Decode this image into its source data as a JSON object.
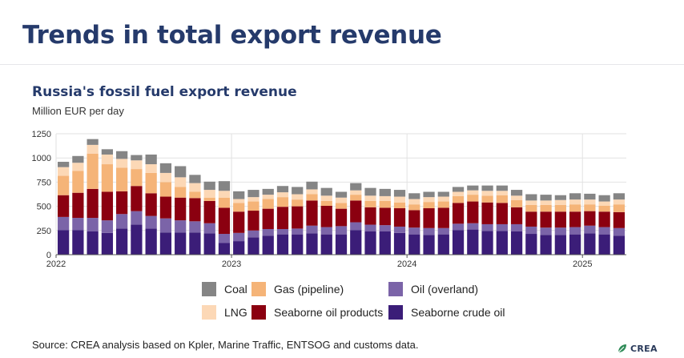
{
  "slide_title": "Trends in total export revenue",
  "source_note": "Source: CREA analysis based on Kpler, Marine Traffic, ENTSOG and customs data.",
  "brand": {
    "name": "CREA",
    "color": "#2e8b57"
  },
  "colors": {
    "gridline": "#e2e2e2",
    "axis": "#555555"
  },
  "chart_data": {
    "type": "bar",
    "stacked": true,
    "title": "Russia's fossil fuel export revenue",
    "ylabel": "Million EUR per day",
    "xlabel": "",
    "ylim": [
      0,
      1250
    ],
    "yticks": [
      "0",
      "250",
      "500",
      "750",
      "1000",
      "1250"
    ],
    "ytick_values": [
      0,
      250,
      500,
      750,
      1000,
      1250
    ],
    "grid": true,
    "legend_position": "bottom",
    "xticks": [
      {
        "label": "2022",
        "index": 0
      },
      {
        "label": "2023",
        "index": 12
      },
      {
        "label": "2024",
        "index": 24
      },
      {
        "label": "2025",
        "index": 36
      }
    ],
    "categories": [
      "2022-01",
      "2022-02",
      "2022-03",
      "2022-04",
      "2022-05",
      "2022-06",
      "2022-07",
      "2022-08",
      "2022-09",
      "2022-10",
      "2022-11",
      "2022-12",
      "2023-01",
      "2023-02",
      "2023-03",
      "2023-04",
      "2023-05",
      "2023-06",
      "2023-07",
      "2023-08",
      "2023-09",
      "2023-10",
      "2023-11",
      "2023-12",
      "2024-01",
      "2024-02",
      "2024-03",
      "2024-04",
      "2024-05",
      "2024-06",
      "2024-07",
      "2024-08",
      "2024-09",
      "2024-10",
      "2024-11",
      "2024-12",
      "2025-01",
      "2025-02",
      "2025-03"
    ],
    "series": [
      {
        "name": "Seaborne crude oil",
        "color": "#3b1d78",
        "values": [
          255,
          255,
          240,
          225,
          270,
          310,
          270,
          230,
          230,
          230,
          220,
          120,
          140,
          180,
          195,
          210,
          210,
          220,
          210,
          210,
          255,
          240,
          240,
          225,
          210,
          205,
          210,
          255,
          260,
          245,
          245,
          240,
          215,
          205,
          205,
          210,
          220,
          210,
          195
        ]
      },
      {
        "name": "Oil (overland)",
        "color": "#7b64a8",
        "values": [
          135,
          125,
          140,
          130,
          150,
          140,
          130,
          145,
          125,
          115,
          105,
          95,
          85,
          70,
          70,
          55,
          60,
          80,
          75,
          85,
          80,
          70,
          65,
          65,
          70,
          70,
          65,
          65,
          65,
          70,
          70,
          75,
          75,
          75,
          75,
          75,
          80,
          75,
          80
        ]
      },
      {
        "name": "Seaborne oil products",
        "color": "#8b0010",
        "values": [
          225,
          260,
          300,
          295,
          235,
          260,
          235,
          225,
          235,
          240,
          230,
          270,
          220,
          205,
          210,
          230,
          230,
          260,
          220,
          180,
          225,
          180,
          180,
          190,
          180,
          205,
          210,
          215,
          225,
          225,
          220,
          175,
          155,
          165,
          165,
          160,
          150,
          160,
          165
        ]
      },
      {
        "name": "Gas (pipeline)",
        "color": "#f5b478",
        "values": [
          200,
          225,
          365,
          285,
          245,
          175,
          210,
          150,
          110,
          65,
          35,
          105,
          90,
          95,
          100,
          100,
          70,
          65,
          50,
          60,
          60,
          65,
          70,
          60,
          60,
          65,
          65,
          70,
          70,
          70,
          80,
          75,
          70,
          70,
          70,
          75,
          70,
          60,
          80
        ]
      },
      {
        "name": "LNG",
        "color": "#fcd8b6",
        "values": [
          90,
          85,
          90,
          100,
          90,
          90,
          90,
          95,
          100,
          90,
          80,
          70,
          40,
          45,
          45,
          50,
          55,
          50,
          55,
          55,
          45,
          55,
          50,
          60,
          55,
          50,
          50,
          45,
          45,
          50,
          45,
          45,
          45,
          45,
          50,
          50,
          50,
          45,
          50
        ]
      },
      {
        "name": "Coal",
        "color": "#858585",
        "values": [
          55,
          70,
          60,
          55,
          80,
          55,
          100,
          100,
          115,
          85,
          85,
          100,
          80,
          75,
          60,
          65,
          75,
          80,
          80,
          60,
          75,
          80,
          75,
          70,
          60,
          55,
          50,
          50,
          50,
          55,
          55,
          60,
          65,
          60,
          50,
          65,
          60,
          65,
          65
        ]
      }
    ],
    "legend": [
      {
        "label": "Coal",
        "color": "#858585"
      },
      {
        "label": "LNG",
        "color": "#fcd8b6"
      },
      {
        "label": "Gas (pipeline)",
        "color": "#f5b478"
      },
      {
        "label": "Seaborne oil products",
        "color": "#8b0010"
      },
      {
        "label": "Oil (overland)",
        "color": "#7b64a8"
      },
      {
        "label": "Seaborne crude oil",
        "color": "#3b1d78"
      }
    ]
  }
}
